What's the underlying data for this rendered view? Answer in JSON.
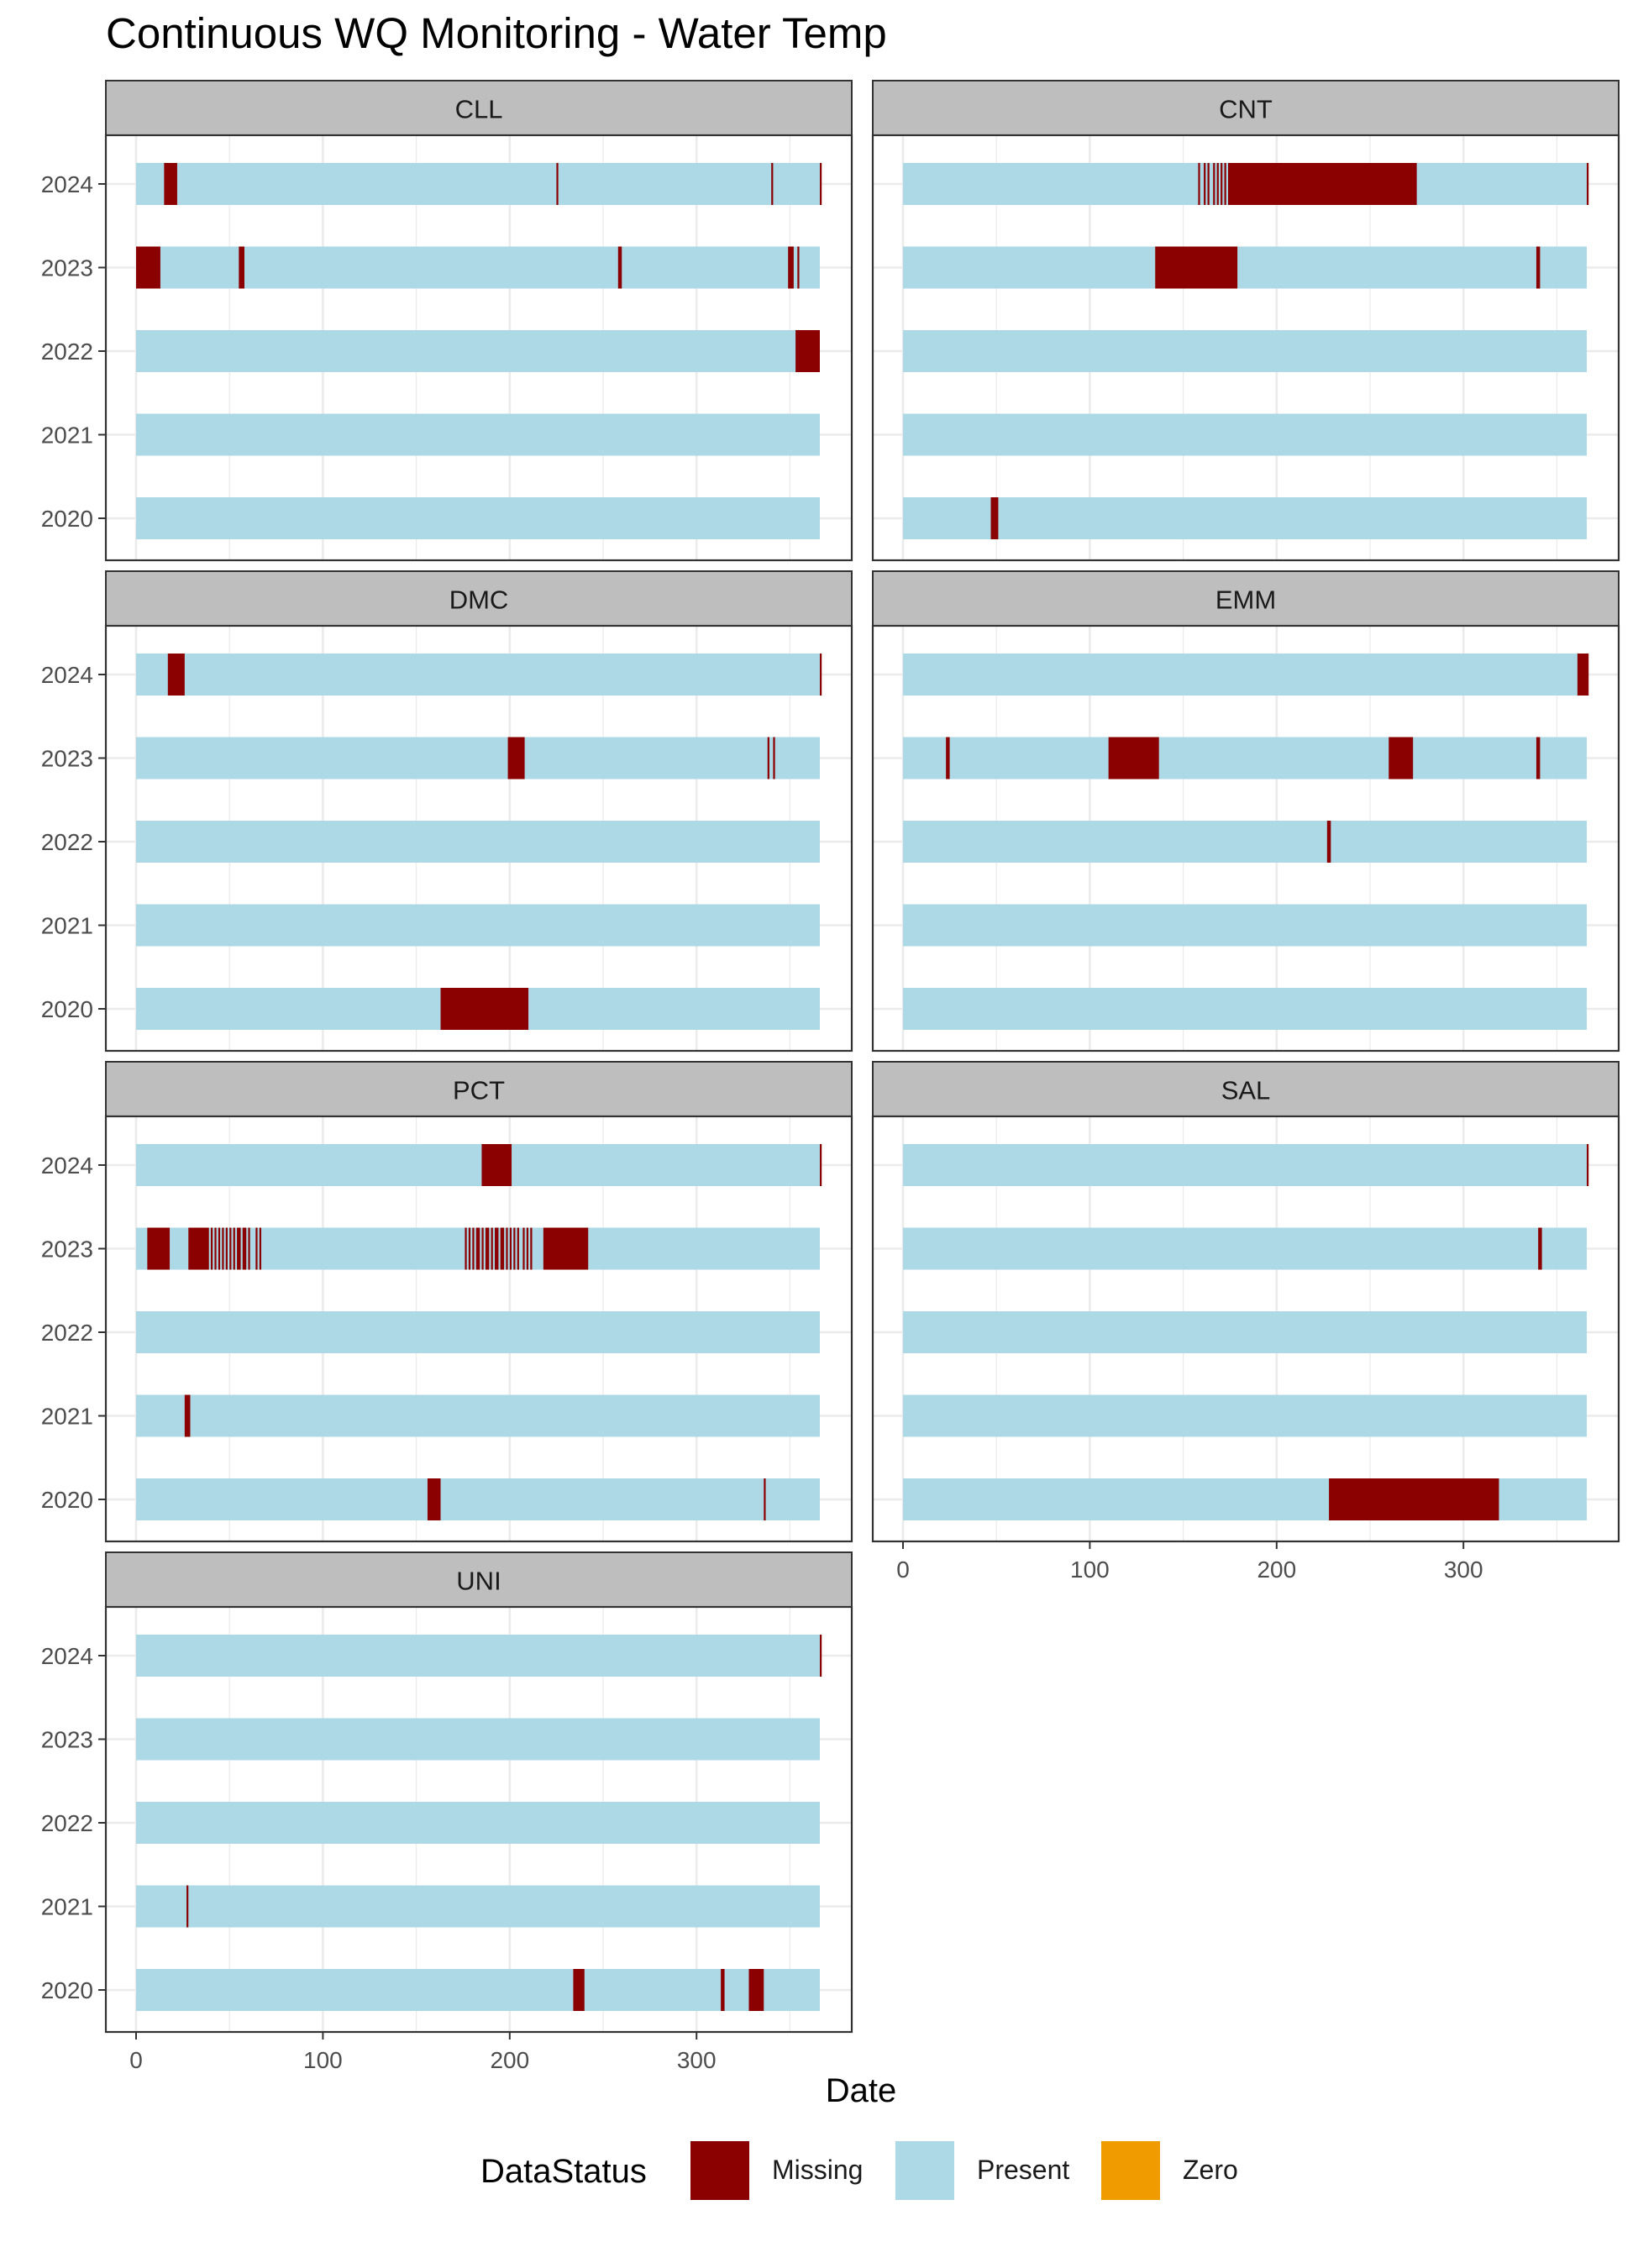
{
  "title": "Continuous WQ Monitoring - Water Temp",
  "colors": {
    "missing": "#8B0000",
    "present": "#ADD8E6",
    "zero": "#F09C00",
    "strip_bg": "#BEBEBE",
    "grid": "#EBEBEB",
    "panel_border": "#333333"
  },
  "legend_title": "DataStatus",
  "legend_position": "bottom",
  "chart_data": {
    "type": "bar",
    "orientation": "horizontal",
    "title": "Continuous WQ Monitoring - Water Temp",
    "xlabel": "Date",
    "ylabel": "",
    "xlim": [
      0,
      366
    ],
    "x_ticks": [
      0,
      100,
      200,
      300
    ],
    "years": [
      "2020",
      "2021",
      "2022",
      "2023",
      "2024"
    ],
    "legend": [
      "Missing",
      "Present",
      "Zero"
    ],
    "grid": true,
    "facets": [
      {
        "name": "CLL",
        "rows": {
          "2024": [
            [
              15,
              22
            ],
            [
              225,
              226
            ],
            [
              340,
              341
            ],
            [
              366,
              367
            ]
          ],
          "2023": [
            [
              0,
              13
            ],
            [
              55,
              58
            ],
            [
              258,
              260
            ],
            [
              349,
              352
            ],
            [
              354,
              355
            ]
          ],
          "2022": [
            [
              353,
              366
            ]
          ],
          "2021": [],
          "2020": []
        }
      },
      {
        "name": "CNT",
        "rows": {
          "2024": [
            [
              158,
              159
            ],
            [
              161,
              162
            ],
            [
              163,
              164
            ],
            [
              166,
              167
            ],
            [
              168,
              169
            ],
            [
              170,
              171
            ],
            [
              172,
              173
            ],
            [
              174,
              275
            ],
            [
              366,
              367
            ]
          ],
          "2023": [
            [
              135,
              179
            ],
            [
              339,
              341
            ]
          ],
          "2022": [],
          "2021": [],
          "2020": [
            [
              47,
              51
            ]
          ]
        }
      },
      {
        "name": "DMC",
        "rows": {
          "2024": [
            [
              17,
              26
            ],
            [
              366,
              367
            ]
          ],
          "2023": [
            [
              199,
              208
            ],
            [
              338,
              339
            ],
            [
              341,
              342
            ]
          ],
          "2022": [],
          "2021": [],
          "2020": [
            [
              163,
              210
            ]
          ]
        }
      },
      {
        "name": "EMM",
        "rows": {
          "2024": [
            [
              361,
              367
            ]
          ],
          "2023": [
            [
              23,
              25
            ],
            [
              110,
              137
            ],
            [
              260,
              273
            ],
            [
              339,
              341
            ]
          ],
          "2022": [
            [
              227,
              229
            ]
          ],
          "2021": [],
          "2020": []
        }
      },
      {
        "name": "PCT",
        "rows": {
          "2024": [
            [
              185,
              201
            ],
            [
              366,
              367
            ]
          ],
          "2023": [
            [
              6,
              18
            ],
            [
              28,
              39
            ],
            [
              40,
              41
            ],
            [
              42,
              43
            ],
            [
              44,
              45
            ],
            [
              46,
              47
            ],
            [
              48,
              49
            ],
            [
              50,
              51
            ],
            [
              52,
              53
            ],
            [
              54,
              56
            ],
            [
              57,
              59
            ],
            [
              60,
              61
            ],
            [
              64,
              65
            ],
            [
              66,
              67
            ],
            [
              176,
              177
            ],
            [
              178,
              179
            ],
            [
              180,
              181
            ],
            [
              182,
              184
            ],
            [
              185,
              186
            ],
            [
              187,
              189
            ],
            [
              190,
              191
            ],
            [
              192,
              194
            ],
            [
              195,
              197
            ],
            [
              198,
              199
            ],
            [
              200,
              201
            ],
            [
              202,
              203
            ],
            [
              204,
              205
            ],
            [
              207,
              208
            ],
            [
              209,
              210
            ],
            [
              211,
              212
            ],
            [
              218,
              242
            ]
          ],
          "2022": [],
          "2021": [
            [
              26,
              29
            ]
          ],
          "2020": [
            [
              156,
              163
            ],
            [
              336,
              337
            ]
          ]
        }
      },
      {
        "name": "SAL",
        "rows": {
          "2024": [
            [
              366,
              367
            ]
          ],
          "2023": [
            [
              340,
              342
            ]
          ],
          "2022": [],
          "2021": [],
          "2020": [
            [
              228,
              319
            ]
          ]
        }
      },
      {
        "name": "UNI",
        "rows": {
          "2024": [
            [
              366,
              367
            ]
          ],
          "2023": [],
          "2022": [],
          "2021": [
            [
              27,
              28
            ]
          ],
          "2020": [
            [
              234,
              240
            ],
            [
              313,
              315
            ],
            [
              328,
              336
            ]
          ]
        }
      }
    ]
  }
}
